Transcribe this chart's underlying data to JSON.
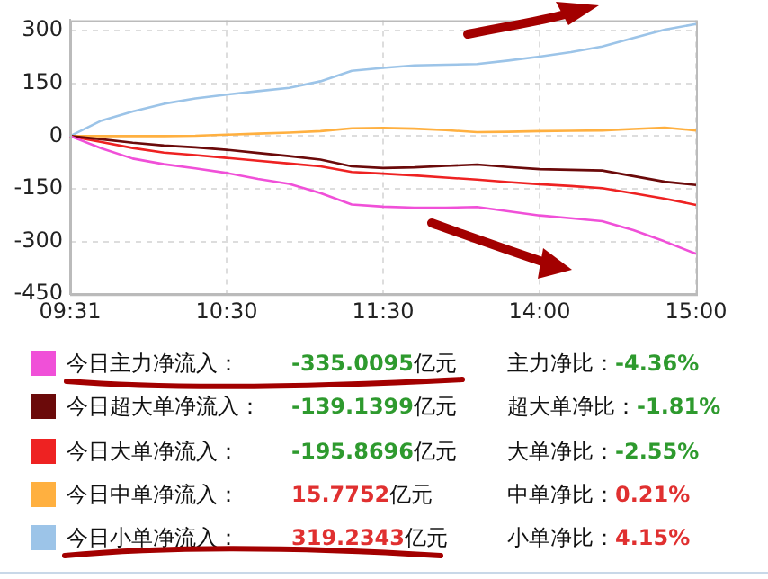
{
  "chart_data": {
    "type": "line",
    "categories": [
      "09:31",
      null,
      null,
      null,
      null,
      "10:30",
      null,
      null,
      null,
      null,
      "11:30",
      null,
      null,
      null,
      null,
      "14:00",
      null,
      null,
      null,
      null,
      "15:00"
    ],
    "ylim": [
      -450,
      330
    ],
    "yticks": [
      -450,
      -300,
      -150,
      0,
      150,
      300
    ],
    "grid": true,
    "legend": "bottom",
    "marker": "none",
    "line_style": "solid",
    "series": [
      {
        "name": "今日主力净流入：",
        "color": "#f050d8",
        "values": [
          0,
          -35,
          -64,
          -80,
          -92,
          -105,
          -122,
          -136,
          -162,
          -195,
          -201,
          -204,
          -204,
          -202,
          -214,
          -226,
          -234,
          -242,
          -268,
          -300,
          -335
        ]
      },
      {
        "name": "今日超大单净流入：",
        "color": "#6b0a0a",
        "values": [
          0,
          -9,
          -19,
          -27,
          -32,
          -39,
          -48,
          -57,
          -67,
          -86,
          -91,
          -89,
          -85,
          -81,
          -88,
          -94,
          -96,
          -98,
          -114,
          -130,
          -139
        ]
      },
      {
        "name": "今日大单净流入：",
        "color": "#ee2222",
        "values": [
          0,
          -17,
          -34,
          -47,
          -54,
          -62,
          -70,
          -78,
          -86,
          -102,
          -107,
          -112,
          -118,
          -124,
          -131,
          -137,
          -142,
          -148,
          -163,
          -178,
          -196
        ]
      },
      {
        "name": "今日中单净流入：",
        "color": "#ffb040",
        "values": [
          0,
          0,
          0,
          0,
          1,
          4,
          7,
          10,
          14,
          22,
          23,
          21,
          17,
          11,
          12,
          14,
          15,
          16,
          20,
          24,
          16
        ]
      },
      {
        "name": "今日小单净流入：",
        "color": "#9cc4e8",
        "values": [
          0,
          44,
          70,
          92,
          107,
          118,
          128,
          137,
          156,
          186,
          194,
          201,
          203,
          205,
          215,
          226,
          239,
          255,
          279,
          303,
          319
        ]
      }
    ],
    "annotations": [
      "-335.0095亿元",
      "主力净比：-4.36%",
      "-139.1399亿元",
      "超大单净比：-1.81%",
      "-195.8696亿元",
      "大单净比：-2.55%",
      "15.7752亿元",
      "中单净比：0.21%",
      "319.2343亿元",
      "小单净比：4.15%"
    ]
  }
}
